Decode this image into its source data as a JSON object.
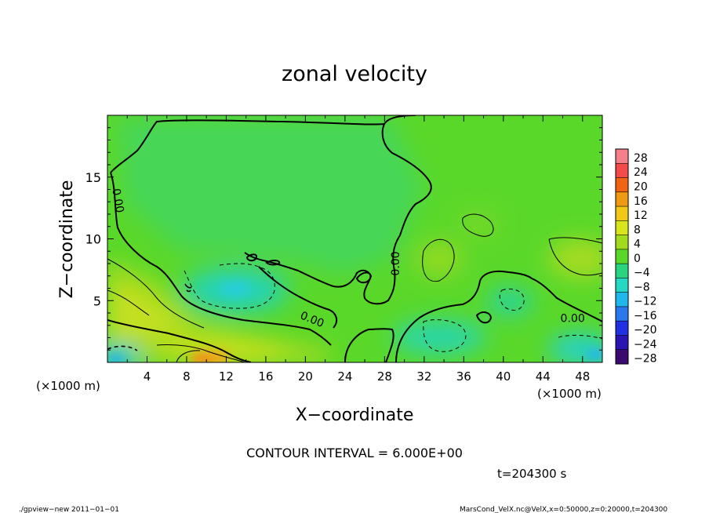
{
  "chart_data": {
    "type": "heatmap",
    "title": "zonal velocity",
    "xlabel": "X−coordinate",
    "ylabel": "Z−coordinate",
    "x_unit_label": "(×1000 m)",
    "y_unit_label": "(×1000 m)",
    "xlim": [
      0,
      50
    ],
    "ylim": [
      0,
      20
    ],
    "x_ticks": [
      4,
      8,
      12,
      16,
      20,
      24,
      28,
      32,
      36,
      40,
      44,
      48
    ],
    "y_ticks": [
      5,
      10,
      15
    ],
    "colorbar": {
      "levels": [
        28,
        24,
        20,
        16,
        12,
        8,
        4,
        0,
        -4,
        -8,
        -12,
        -16,
        -20,
        -24,
        -28
      ],
      "label_texts": [
        "28",
        "24",
        "20",
        "16",
        "12",
        "8",
        "4",
        "0",
        "−4",
        "−8",
        "−12",
        "−16",
        "−20",
        "−24",
        "−28"
      ],
      "colors": [
        "#f5808a",
        "#f44a4a",
        "#f06414",
        "#f09a14",
        "#f2c818",
        "#d8e41c",
        "#a0dc1c",
        "#5ad82a",
        "#28d47e",
        "#24d8c4",
        "#20b8ec",
        "#2a78ee",
        "#2230e4",
        "#2a14b4",
        "#3a0a6e"
      ]
    },
    "contour_labels": [
      {
        "text": "0.00",
        "x": 1.1,
        "z": 13.1,
        "rotation": 80
      },
      {
        "text": "0.00",
        "x": 20.7,
        "z": 3.5,
        "rotation": 22
      },
      {
        "text": "0.00",
        "x": 29.1,
        "z": 8.0,
        "rotation": -90
      },
      {
        "text": "0.00",
        "x": 47.0,
        "z": 3.6,
        "rotation": 0
      }
    ],
    "contour_interval_text": "CONTOUR INTERVAL = 6.000E+00",
    "time_text": "t=204300 s"
  },
  "footer": {
    "left": "./gpview−new  2011−01−01",
    "right": "MarsCond_VelX.nc@VelX,x=0:50000,z=0:20000,t=204300"
  }
}
